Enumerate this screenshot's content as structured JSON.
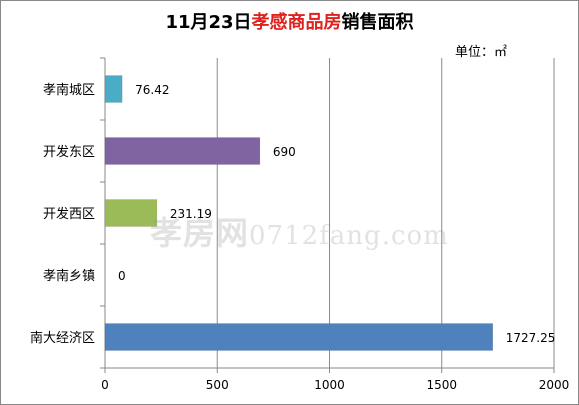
{
  "chart_data": {
    "type": "bar",
    "orientation": "horizontal",
    "title_prefix": "11月23日",
    "title_accent": "孝感商品房",
    "title_suffix": "销售面积",
    "unit_label": "单位：㎡",
    "categories": [
      "孝南城区",
      "开发东区",
      "开发西区",
      "孝南乡镇",
      "南大经济区"
    ],
    "value_labels": [
      "76.42",
      "690",
      "231.19",
      "0",
      "1727.25"
    ],
    "values": [
      76.42,
      690,
      231.19,
      0,
      1727.25
    ],
    "colors": [
      "#4bacc6",
      "#8064a2",
      "#9bbb59",
      "#c0504d",
      "#4f81bd"
    ],
    "xlim": [
      0,
      2000
    ],
    "xticks": [
      0,
      500,
      1000,
      1500,
      2000
    ],
    "xtick_labels": [
      "0",
      "500",
      "1000",
      "1500",
      "2000"
    ],
    "grid": true
  },
  "watermark": {
    "text_cn": "孝房网",
    "text_url": "0712fang.com"
  }
}
